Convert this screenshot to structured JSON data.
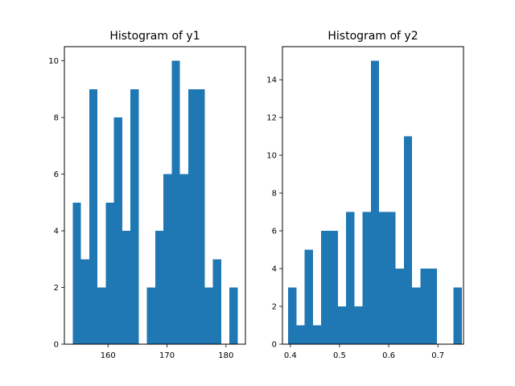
{
  "figure": {
    "background": "#ffffff"
  },
  "chart_data": [
    {
      "type": "bar",
      "title": "Histogram of y1",
      "xlabel": "",
      "ylabel": "",
      "xlim": [
        152.6,
        183.3
      ],
      "ylim": [
        0,
        10.5
      ],
      "xticks": [
        160,
        170,
        180
      ],
      "yticks": [
        0,
        2,
        4,
        6,
        8,
        10
      ],
      "bar_color": "#1f77b4",
      "grid": false,
      "bins": [
        {
          "x0": 154.0,
          "x1": 155.4,
          "count": 5
        },
        {
          "x0": 155.4,
          "x1": 156.8,
          "count": 3
        },
        {
          "x0": 156.8,
          "x1": 158.2,
          "count": 9
        },
        {
          "x0": 158.2,
          "x1": 159.6,
          "count": 2
        },
        {
          "x0": 159.6,
          "x1": 161.0,
          "count": 5
        },
        {
          "x0": 161.0,
          "x1": 162.4,
          "count": 8
        },
        {
          "x0": 162.4,
          "x1": 163.8,
          "count": 4
        },
        {
          "x0": 163.8,
          "x1": 165.2,
          "count": 9
        },
        {
          "x0": 165.2,
          "x1": 166.6,
          "count": 0
        },
        {
          "x0": 166.6,
          "x1": 168.0,
          "count": 2
        },
        {
          "x0": 168.0,
          "x1": 169.4,
          "count": 4
        },
        {
          "x0": 169.4,
          "x1": 170.8,
          "count": 6
        },
        {
          "x0": 170.8,
          "x1": 172.2,
          "count": 10
        },
        {
          "x0": 172.2,
          "x1": 173.6,
          "count": 6
        },
        {
          "x0": 173.6,
          "x1": 175.0,
          "count": 9
        },
        {
          "x0": 175.0,
          "x1": 176.4,
          "count": 9
        },
        {
          "x0": 176.4,
          "x1": 177.8,
          "count": 2
        },
        {
          "x0": 177.8,
          "x1": 179.2,
          "count": 3
        },
        {
          "x0": 179.2,
          "x1": 180.6,
          "count": 0
        },
        {
          "x0": 180.6,
          "x1": 182.0,
          "count": 2
        }
      ]
    },
    {
      "type": "bar",
      "title": "Histogram of y2",
      "xlabel": "",
      "ylabel": "",
      "xlim": [
        0.384,
        0.752
      ],
      "ylim": [
        0,
        15.75
      ],
      "xticks": [
        0.4,
        0.5,
        0.6,
        0.7
      ],
      "yticks": [
        0,
        2,
        4,
        6,
        8,
        10,
        12,
        14
      ],
      "bar_color": "#1f77b4",
      "grid": false,
      "bins": [
        {
          "x0": 0.3957,
          "x1": 0.4125,
          "count": 3
        },
        {
          "x0": 0.4125,
          "x1": 0.4293,
          "count": 1
        },
        {
          "x0": 0.4293,
          "x1": 0.4461,
          "count": 5
        },
        {
          "x0": 0.4461,
          "x1": 0.4629,
          "count": 1
        },
        {
          "x0": 0.4629,
          "x1": 0.4797,
          "count": 6
        },
        {
          "x0": 0.4797,
          "x1": 0.4965,
          "count": 6
        },
        {
          "x0": 0.4965,
          "x1": 0.5133,
          "count": 2
        },
        {
          "x0": 0.5133,
          "x1": 0.5301,
          "count": 7
        },
        {
          "x0": 0.5301,
          "x1": 0.5469,
          "count": 2
        },
        {
          "x0": 0.5469,
          "x1": 0.5637,
          "count": 7
        },
        {
          "x0": 0.5637,
          "x1": 0.5805,
          "count": 15
        },
        {
          "x0": 0.5805,
          "x1": 0.5973,
          "count": 7
        },
        {
          "x0": 0.5973,
          "x1": 0.6141,
          "count": 7
        },
        {
          "x0": 0.6141,
          "x1": 0.6309,
          "count": 4
        },
        {
          "x0": 0.6309,
          "x1": 0.6477,
          "count": 11
        },
        {
          "x0": 0.6477,
          "x1": 0.6645,
          "count": 3
        },
        {
          "x0": 0.6645,
          "x1": 0.6813,
          "count": 4
        },
        {
          "x0": 0.6813,
          "x1": 0.6981,
          "count": 4
        },
        {
          "x0": 0.6981,
          "x1": 0.7149,
          "count": 0
        },
        {
          "x0": 0.7149,
          "x1": 0.7317,
          "count": 0
        },
        {
          "x0": 0.7317,
          "x1": 0.7485,
          "count": 3
        }
      ]
    }
  ]
}
